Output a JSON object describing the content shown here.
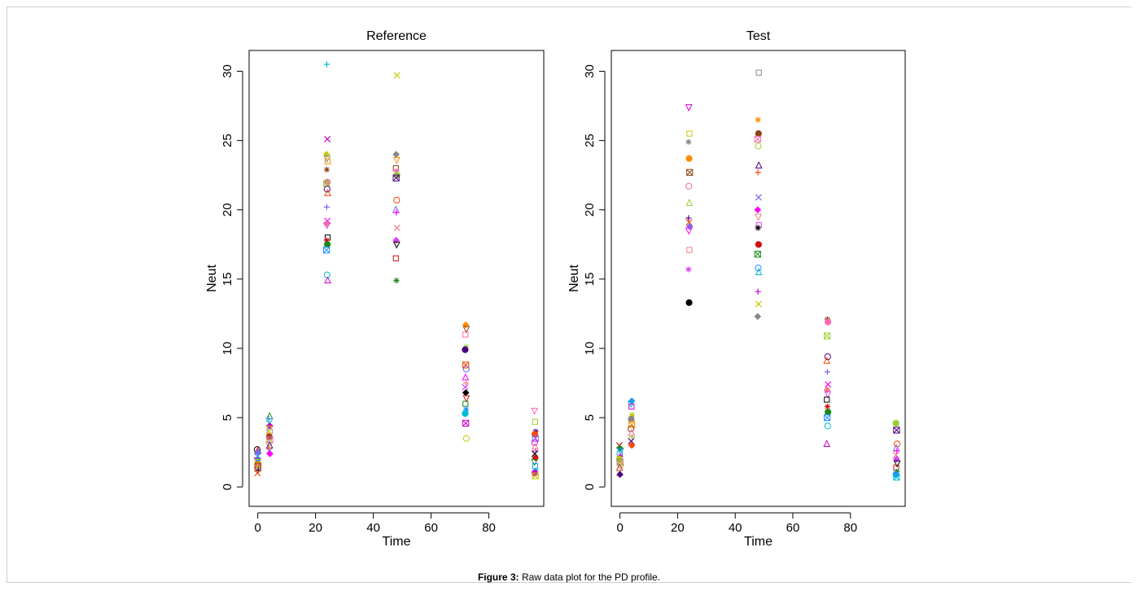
{
  "caption": {
    "label": "Figure 3:",
    "text": "Raw data plot for the PD profile."
  },
  "chart_data": [
    {
      "type": "scatter",
      "title": "Reference",
      "xlabel": "Time",
      "ylabel": "Neut",
      "xlim": [
        -3,
        99
      ],
      "ylim": [
        -1.4,
        31.5
      ],
      "xticks": [
        0,
        20,
        40,
        60,
        80
      ],
      "yticks": [
        0,
        5,
        10,
        15,
        20,
        25,
        30
      ],
      "groups": [
        {
          "x": 0,
          "values": [
            2.7,
            2.6,
            2.4,
            2.2,
            2.0,
            1.9,
            1.8,
            1.7,
            1.6,
            1.5,
            1.4,
            1.3,
            1.2,
            1.0,
            2.5
          ]
        },
        {
          "x": 4,
          "values": [
            5.1,
            4.9,
            4.6,
            4.4,
            4.2,
            4.0,
            3.8,
            3.6,
            3.4,
            3.2,
            3.0,
            2.8,
            2.6,
            2.4
          ]
        },
        {
          "x": 24,
          "values": [
            30.5,
            25.1,
            24.0,
            23.7,
            23.5,
            22.9,
            22.0,
            21.9,
            21.5,
            21.2,
            20.2,
            19.2,
            19.0,
            18.9,
            18.0,
            17.8,
            17.5,
            17.1,
            15.3,
            14.9
          ]
        },
        {
          "x": 48,
          "values": [
            29.7,
            24.0,
            23.6,
            23.0,
            22.8,
            22.5,
            22.3,
            20.7,
            20.0,
            19.8,
            18.7,
            17.8,
            17.5,
            16.5,
            14.9
          ]
        },
        {
          "x": 72,
          "values": [
            11.7,
            11.4,
            11.0,
            10.1,
            9.9,
            8.8,
            8.5,
            7.9,
            7.5,
            7.2,
            6.8,
            6.4,
            6.0,
            5.6,
            5.3,
            4.6,
            3.5
          ]
        },
        {
          "x": 96,
          "values": [
            5.5,
            4.7,
            4.0,
            3.8,
            3.5,
            3.2,
            2.9,
            2.6,
            2.4,
            2.1,
            1.8,
            1.5,
            1.2,
            1.0,
            0.8
          ]
        }
      ]
    },
    {
      "type": "scatter",
      "title": "Test",
      "xlabel": "Time",
      "ylabel": "Neut",
      "xlim": [
        -3,
        99
      ],
      "ylim": [
        -1.4,
        31.5
      ],
      "xticks": [
        0,
        20,
        40,
        60,
        80
      ],
      "yticks": [
        0,
        5,
        10,
        15,
        20,
        25,
        30
      ],
      "groups": [
        {
          "x": 0,
          "values": [
            3.0,
            2.8,
            2.6,
            2.4,
            2.2,
            2.0,
            1.8,
            1.6,
            1.4,
            1.2,
            1.0,
            0.9
          ]
        },
        {
          "x": 4,
          "values": [
            6.2,
            6.0,
            5.8,
            5.2,
            4.9,
            4.5,
            4.2,
            3.9,
            3.6,
            3.3,
            3.0
          ]
        },
        {
          "x": 24,
          "values": [
            27.4,
            25.5,
            24.9,
            23.7,
            22.7,
            21.7,
            20.5,
            19.4,
            19.1,
            18.8,
            18.5,
            17.1,
            15.7,
            13.3
          ]
        },
        {
          "x": 48,
          "values": [
            29.9,
            26.5,
            25.5,
            25.1,
            24.6,
            23.2,
            22.7,
            20.9,
            20.0,
            19.5,
            18.9,
            18.7,
            17.5,
            16.8,
            15.8,
            15.5,
            14.1,
            13.2,
            12.3
          ]
        },
        {
          "x": 72,
          "values": [
            12.1,
            11.9,
            10.9,
            9.4,
            9.1,
            8.3,
            7.4,
            7.0,
            6.7,
            6.3,
            5.8,
            5.4,
            5.0,
            4.4,
            3.1
          ]
        },
        {
          "x": 96,
          "values": [
            4.6,
            4.1,
            3.1,
            2.8,
            2.6,
            2.3,
            2.0,
            1.7,
            1.4,
            1.1,
            0.9,
            0.7
          ]
        }
      ]
    }
  ],
  "colors": {
    "palette": [
      "#000000",
      "#d01010",
      "#1a8a1a",
      "#1e90ff",
      "#00bcd4",
      "#cc00cc",
      "#c8c800",
      "#888888",
      "#ff8c00",
      "#8b4513",
      "#ff69b4",
      "#9acd32",
      "#4b0082",
      "#ff4500",
      "#7b68ee",
      "#ff00ff",
      "#f08080",
      "#e040fb"
    ],
    "axis": "#000000"
  },
  "markers": [
    "circle",
    "triangle",
    "plus",
    "cross",
    "diamond",
    "inv-triangle",
    "square",
    "star",
    "circle-fill",
    "square-x"
  ]
}
